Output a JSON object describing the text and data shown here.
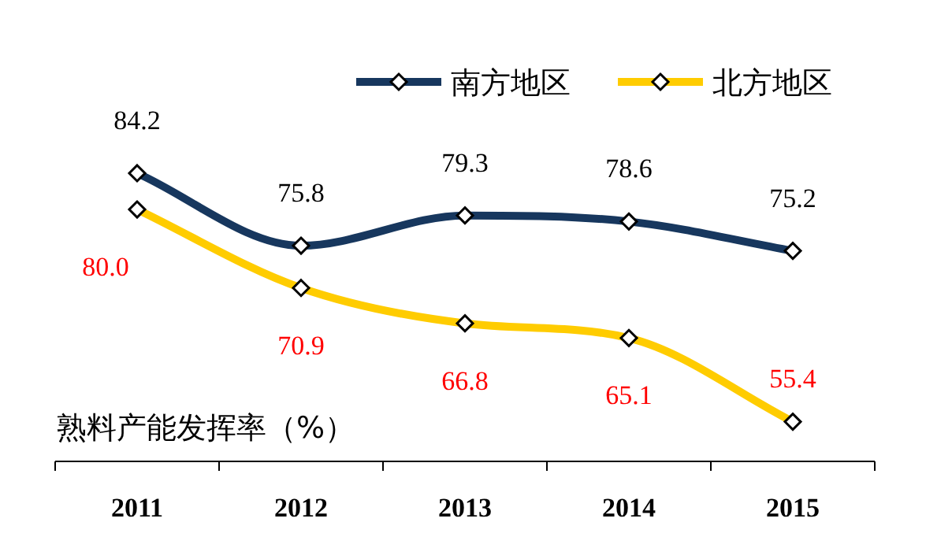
{
  "chart_data": {
    "type": "line",
    "annotations": [
      "熟料产能发挥率（%）"
    ],
    "categories": [
      "2011",
      "2012",
      "2013",
      "2014",
      "2015"
    ],
    "series": [
      {
        "name": "南方地区",
        "color": "#17375e",
        "values": [
          84.2,
          75.8,
          79.3,
          78.6,
          75.2
        ],
        "value_labels": [
          "84.2",
          "75.8",
          "79.3",
          "78.6",
          "75.2"
        ]
      },
      {
        "name": "北方地区",
        "color": "#ffcc00",
        "values": [
          80.0,
          70.9,
          66.8,
          65.1,
          55.4
        ],
        "value_labels": [
          "80.0",
          "70.9",
          "66.8",
          "65.1",
          "55.4"
        ]
      }
    ],
    "legend": "top right",
    "marker": "diamond",
    "grid": false
  }
}
